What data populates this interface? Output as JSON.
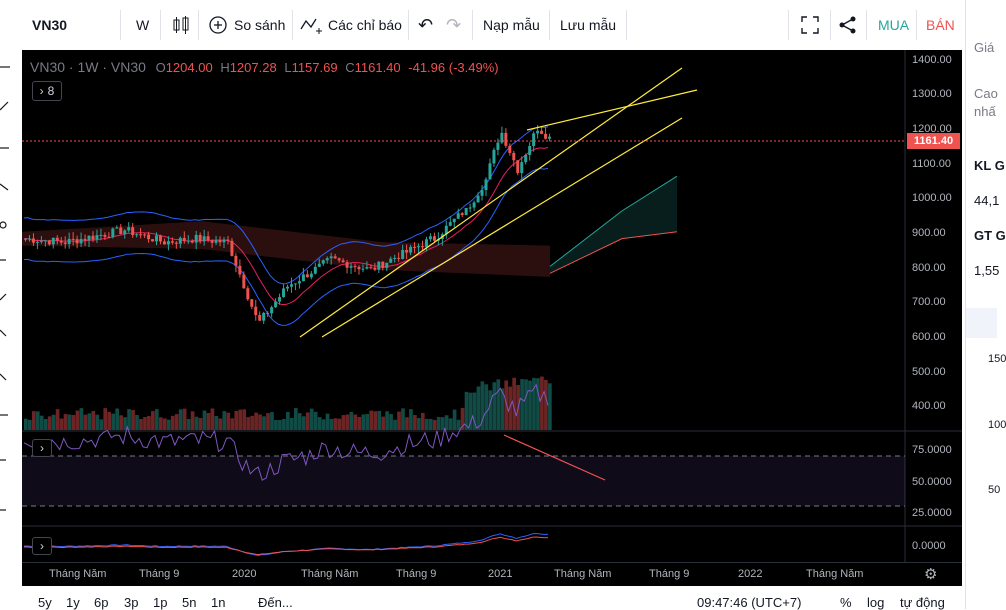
{
  "toolbar": {
    "symbol": "VN30",
    "interval": "W",
    "compare_label": "So sánh",
    "indicators_label": "Các chỉ báo",
    "load_template_label": "Nạp mẫu",
    "save_template_label": "Lưu mẫu",
    "buy_label": "MUA",
    "sell_label": "BÁN"
  },
  "legend": {
    "title": "VN30 · 1W · VN30",
    "o_label": "O",
    "o_value": "1204.00",
    "h_label": "H",
    "h_value": "1207.28",
    "l_label": "L",
    "l_value": "1157.69",
    "c_label": "C",
    "c_value": "1161.40",
    "change": "-41.96 (-3.49%)",
    "collapse_count": "8"
  },
  "price_axis": {
    "labels": [
      "1400.00",
      "1300.00",
      "1200.00",
      "1100.00",
      "1000.00",
      "900.00",
      "800.00",
      "700.00",
      "600.00",
      "500.00",
      "400.00"
    ],
    "last_price": "1161.40"
  },
  "rsi_axis": {
    "labels": [
      "75.0000",
      "50.0000",
      "25.0000"
    ]
  },
  "macd_axis": {
    "labels": [
      "0.0000"
    ]
  },
  "time_axis": {
    "labels": [
      "Tháng Năm",
      "Tháng 9",
      "2020",
      "Tháng Năm",
      "Tháng 9",
      "2021",
      "Tháng Năm",
      "Tháng 9",
      "2022",
      "Tháng Năm"
    ]
  },
  "bottom_bar": {
    "ranges": [
      "5y",
      "1y",
      "6p",
      "3p",
      "1p",
      "5n",
      "1n"
    ],
    "goto_label": "Đến...",
    "clock": "09:47:46 (UTC+7)",
    "percent_label": "%",
    "log_label": "log",
    "auto_label": "tự động"
  },
  "right_panel": {
    "price_label": "Giá",
    "high_label_1": "Cao",
    "high_label_2": "nhấ",
    "kl_label": "KL G",
    "kl_value": "44,1",
    "gt_label": "GT G",
    "gt_value": "1,55",
    "vol_labels": [
      "150",
      "100",
      "50"
    ]
  },
  "colors": {
    "up": "#26a69a",
    "down": "#ef5350",
    "trendline": "#ffeb3b",
    "rsi": "#7e57c2",
    "buy": "#26a69a",
    "sell": "#ef5350"
  }
}
